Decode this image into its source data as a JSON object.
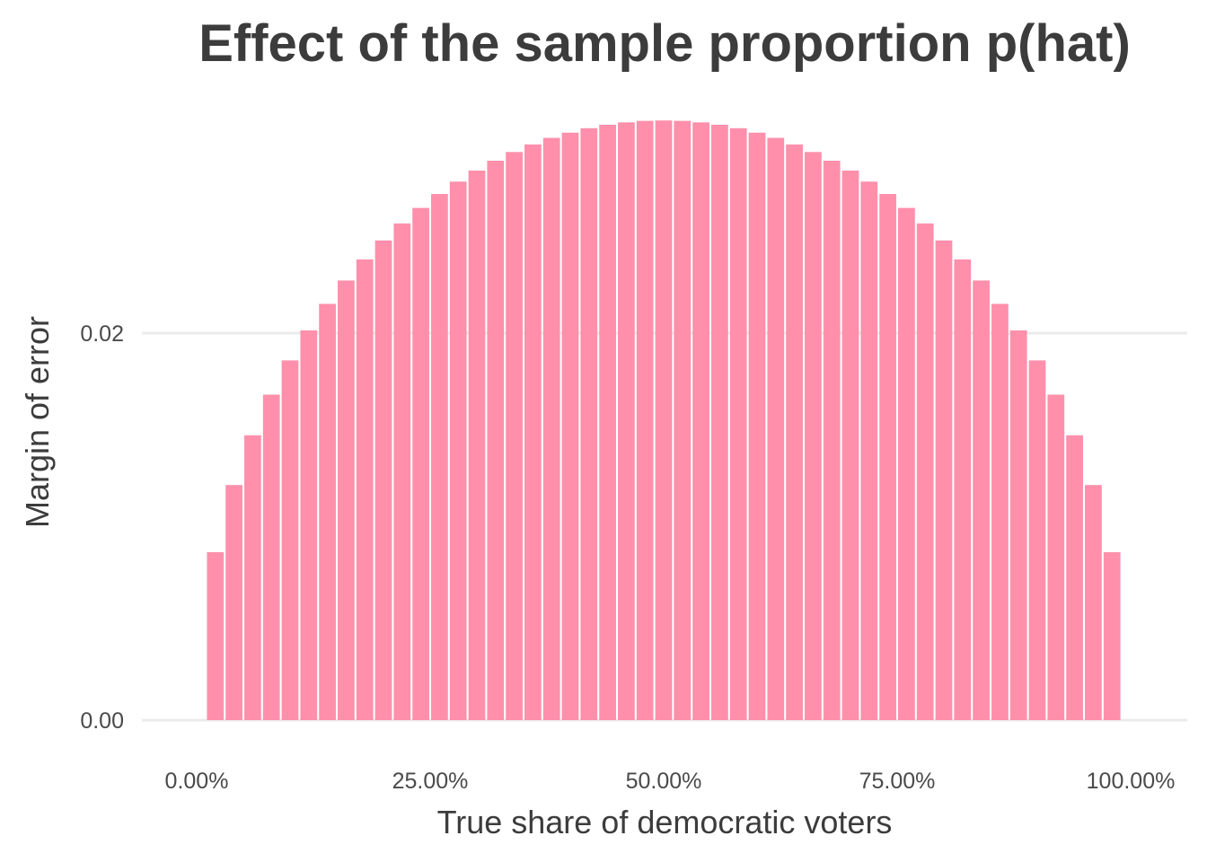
{
  "chart_data": {
    "type": "bar",
    "title": "Effect of the sample proportion p(hat)",
    "xlabel": "True share of democratic voters",
    "ylabel": "Margin of error",
    "x": [
      0.02,
      0.04,
      0.06,
      0.08,
      0.1,
      0.12,
      0.14,
      0.16,
      0.18,
      0.2,
      0.22,
      0.24,
      0.26,
      0.28,
      0.3,
      0.32,
      0.34,
      0.36,
      0.38,
      0.4,
      0.42,
      0.44,
      0.46,
      0.48,
      0.5,
      0.52,
      0.54,
      0.56,
      0.58,
      0.6,
      0.62,
      0.64,
      0.66,
      0.68,
      0.7,
      0.72,
      0.74,
      0.76,
      0.78,
      0.8,
      0.82,
      0.84,
      0.86,
      0.88,
      0.9,
      0.92,
      0.94,
      0.96,
      0.98
    ],
    "values": [
      0.00868,
      0.01215,
      0.01472,
      0.01682,
      0.01859,
      0.02014,
      0.02151,
      0.02272,
      0.02381,
      0.02479,
      0.02567,
      0.02647,
      0.02719,
      0.02783,
      0.0284,
      0.02891,
      0.02936,
      0.02975,
      0.03009,
      0.03036,
      0.03059,
      0.03077,
      0.03089,
      0.03097,
      0.03099,
      0.03097,
      0.03089,
      0.03077,
      0.03059,
      0.03036,
      0.03009,
      0.02975,
      0.02936,
      0.02891,
      0.0284,
      0.02783,
      0.02719,
      0.02647,
      0.02567,
      0.02479,
      0.02381,
      0.02272,
      0.02151,
      0.02014,
      0.01859,
      0.01682,
      0.01472,
      0.01215,
      0.00868
    ],
    "xlim": [
      0,
      1
    ],
    "ylim": [
      0,
      0.031
    ],
    "x_ticks": [
      {
        "value": 0.0,
        "label": "0.00%"
      },
      {
        "value": 0.25,
        "label": "25.00%"
      },
      {
        "value": 0.5,
        "label": "50.00%"
      },
      {
        "value": 0.75,
        "label": "75.00%"
      },
      {
        "value": 1.0,
        "label": "100.00%"
      }
    ],
    "y_ticks": [
      {
        "value": 0.0,
        "label": "0.00"
      },
      {
        "value": 0.02,
        "label": "0.02"
      }
    ],
    "grid": "horizontal-major",
    "bar_color": "#ff8fab",
    "legend": "none"
  }
}
